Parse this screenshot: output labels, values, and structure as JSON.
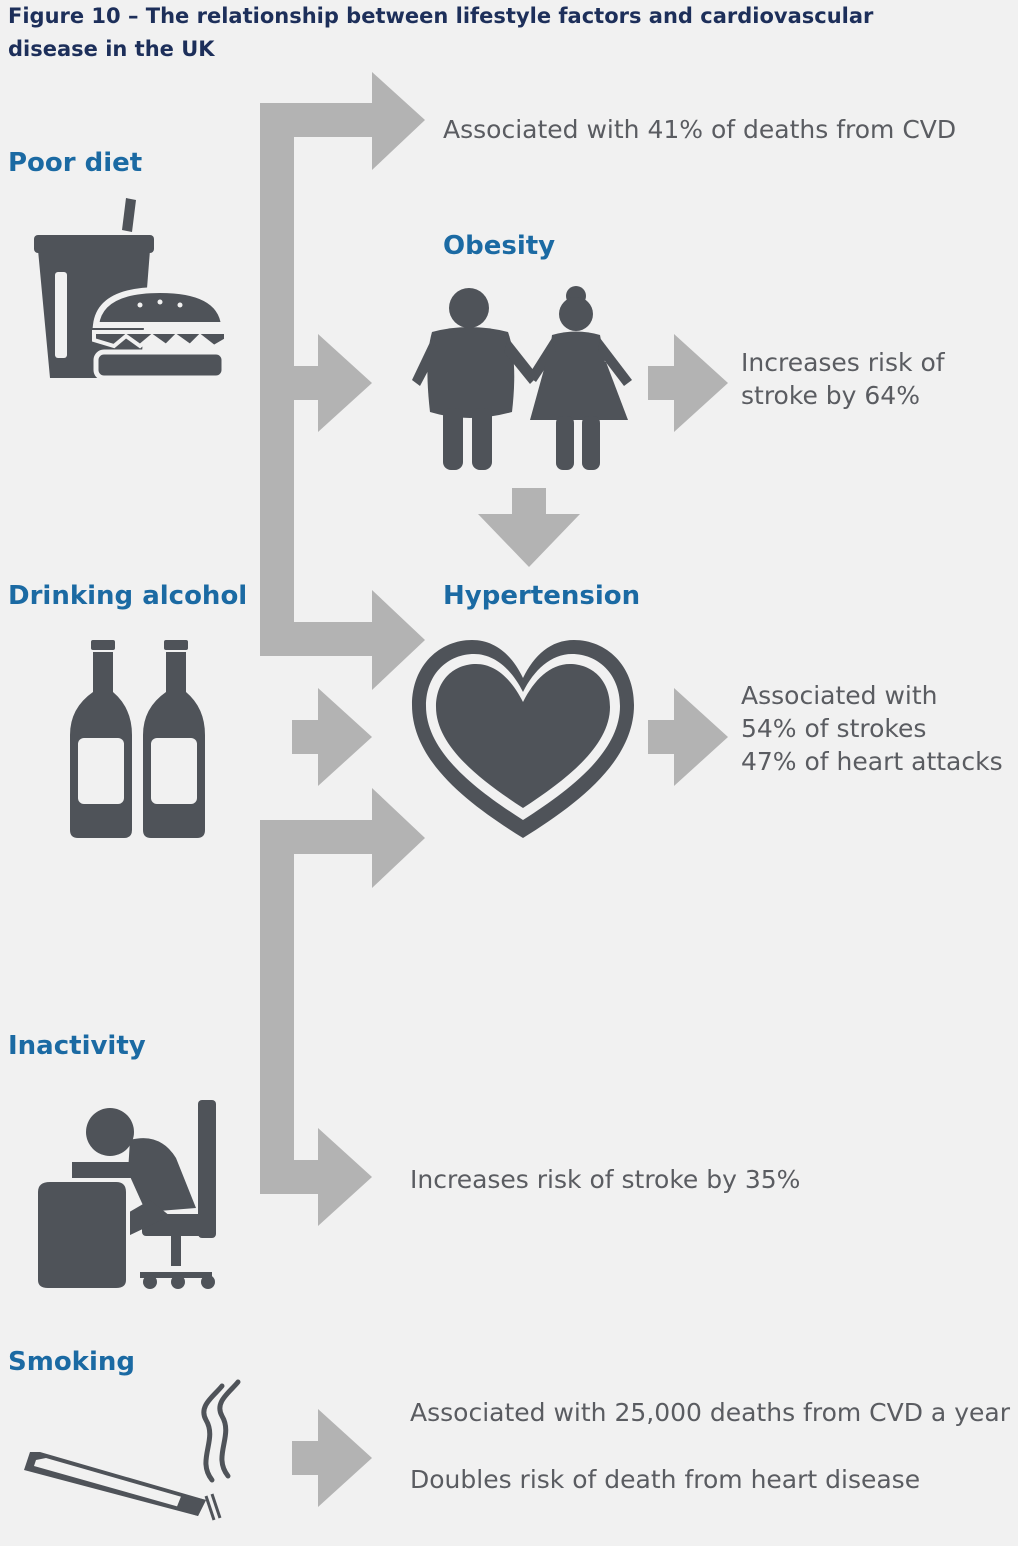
{
  "title": "Figure 10 – The relationship between lifestyle factors and cardiovascular disease in the UK",
  "colors": {
    "heading": "#1b6aa3",
    "title": "#1d2f5a",
    "text": "#5a5c61",
    "icon": "#4f5359",
    "arrow": "#b3b3b3",
    "background": "#f1f1f1"
  },
  "factors": {
    "poor_diet": {
      "label": "Poor diet",
      "icon": "soda-burger-icon"
    },
    "alcohol": {
      "label": "Drinking alcohol",
      "icon": "bottles-icon"
    },
    "inactivity": {
      "label": "Inactivity",
      "icon": "slumped-person-at-desk-icon"
    },
    "smoking": {
      "label": "Smoking",
      "icon": "cigarette-icon"
    }
  },
  "conditions": {
    "obesity": {
      "label": "Obesity",
      "icon": "couple-icon"
    },
    "hypertension": {
      "label": "Hypertension",
      "icon": "heart-icon"
    }
  },
  "effects": {
    "diet": "Associated with 41% of deaths from CVD",
    "obesity": [
      "Increases risk of",
      "stroke by 64%"
    ],
    "hypertension": [
      "Associated with",
      "54% of strokes",
      "47% of heart attacks"
    ],
    "inactivity": "Increases risk of stroke by 35%",
    "smoking": [
      "Associated with 25,000 deaths from CVD a year",
      "Doubles risk of death from heart disease"
    ]
  }
}
